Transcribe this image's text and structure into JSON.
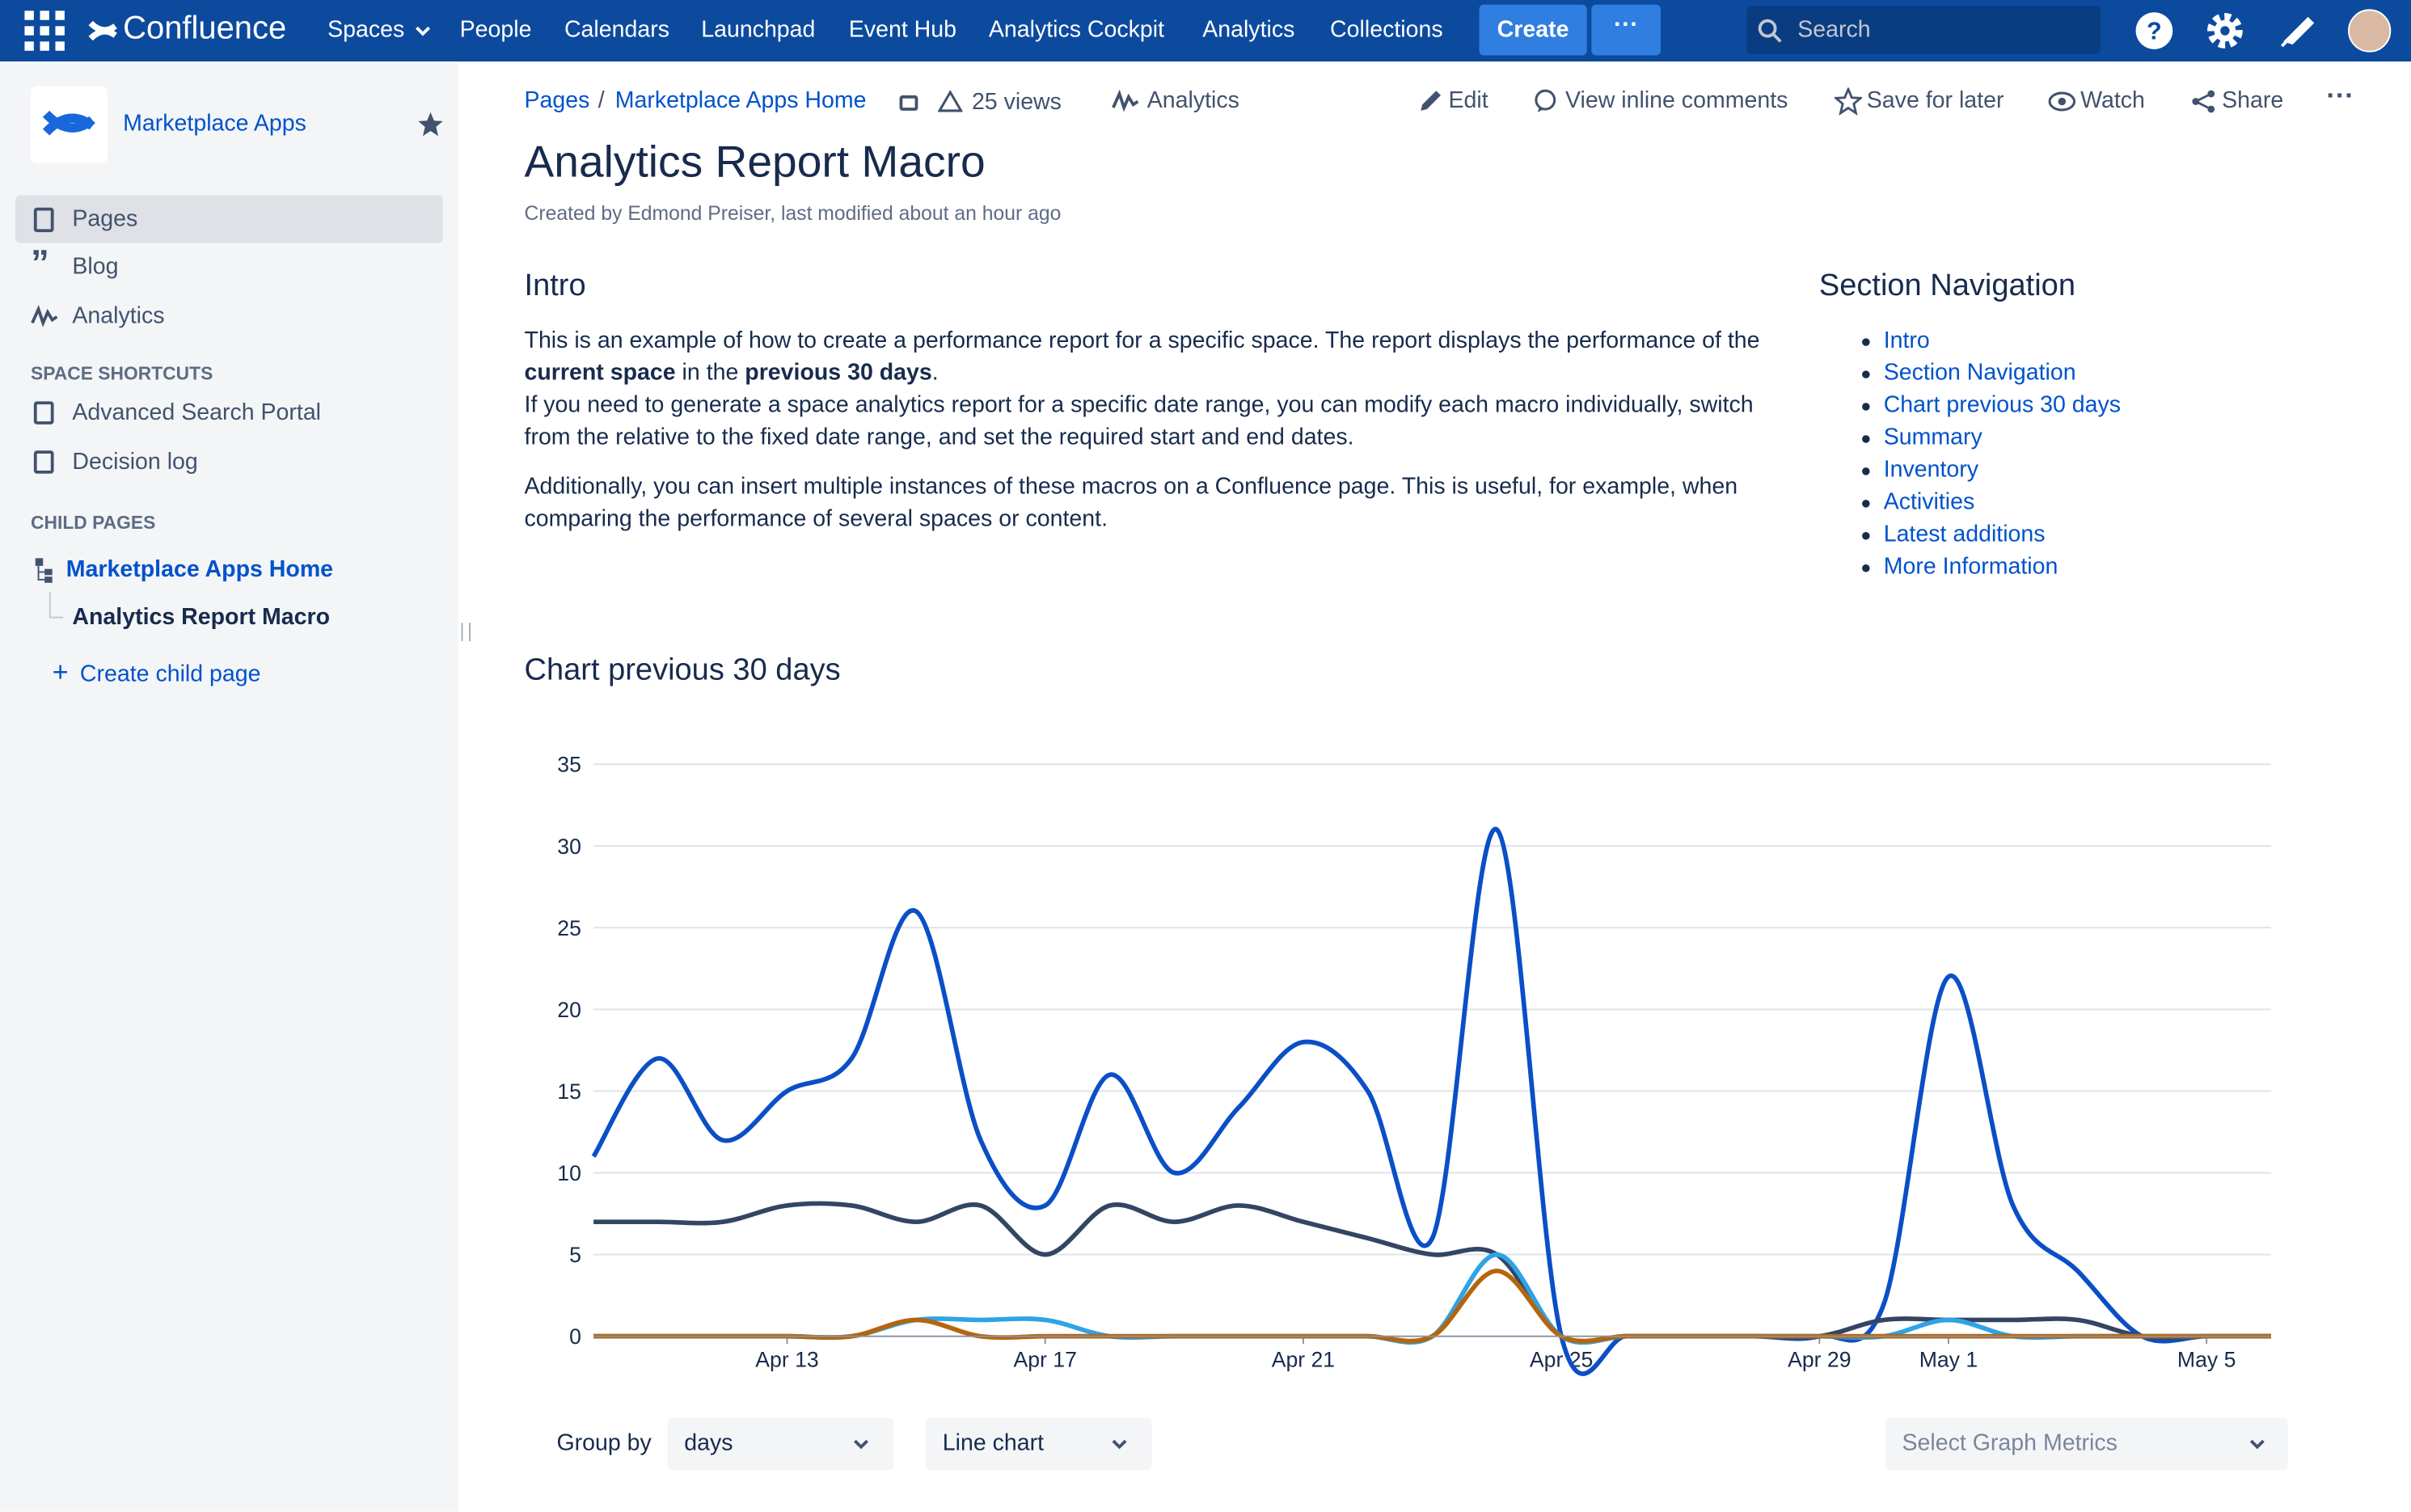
{
  "nav": {
    "product": "Confluence",
    "items": [
      "Spaces",
      "People",
      "Calendars",
      "Launchpad",
      "Event Hub",
      "Analytics Cockpit",
      "Analytics",
      "Collections"
    ],
    "create": "Create",
    "search": "Search"
  },
  "sidebar": {
    "space": "Marketplace Apps",
    "items": [
      "Pages",
      "Blog",
      "Analytics"
    ],
    "shortcuts_heading": "SPACE SHORTCUTS",
    "shortcuts": [
      "Advanced Search Portal",
      "Decision log"
    ],
    "child_heading": "CHILD PAGES",
    "children": [
      "Marketplace Apps Home",
      "Analytics Report Macro"
    ],
    "create_child": "Create child page"
  },
  "page": {
    "breadcrumbs": [
      "Pages",
      "Marketplace Apps Home"
    ],
    "views": "25 views",
    "analytics": "Analytics",
    "actions": [
      "Edit",
      "View inline comments",
      "Save for later",
      "Watch",
      "Share"
    ],
    "title": "Analytics Report Macro",
    "byline": "Created by Edmond Preiser, last modified about an hour ago",
    "intro_heading": "Intro",
    "intro_p1": [
      "This is an example of how to create a performance report for a specific space. The report displays the performance of the ",
      "current space",
      " in the ",
      "previous 30 days",
      "."
    ],
    "intro_p1b": "If you need to generate a space analytics report for a specific date range, you can modify each macro individually, switch from the relative to the fixed date range, and set the required start and end dates.",
    "intro_p2": "Additionally, you can insert multiple instances of these macros on a Confluence page. This is useful, for example, when comparing the performance of several spaces or content.",
    "section_nav_heading": "Section Navigation",
    "section_nav": [
      "Intro",
      "Section Navigation",
      "Chart previous 30 days",
      "Summary",
      "Inventory",
      "Activities",
      "Latest additions",
      "More Information"
    ],
    "chart_heading": "Chart previous 30 days",
    "controls": {
      "group_by_label": "Group by",
      "group_by": "days",
      "chart_type": "Line chart",
      "metrics": "Select Graph Metrics"
    }
  },
  "chart_data": {
    "type": "line",
    "x": [
      "Apr 10",
      "Apr 11",
      "Apr 12",
      "Apr 13",
      "Apr 14",
      "Apr 15",
      "Apr 16",
      "Apr 17",
      "Apr 18",
      "Apr 19",
      "Apr 20",
      "Apr 21",
      "Apr 22",
      "Apr 23",
      "Apr 24",
      "Apr 25",
      "Apr 26",
      "Apr 27",
      "Apr 28",
      "Apr 29",
      "Apr 30",
      "May 1",
      "May 2",
      "May 3",
      "May 4",
      "May 5",
      "May 6"
    ],
    "xlim": [
      "Apr 10",
      "May 6"
    ],
    "xticks": [
      "Apr 13",
      "Apr 17",
      "Apr 21",
      "Apr 25",
      "Apr 29",
      "May 1",
      "May 5"
    ],
    "ylim": [
      0,
      35
    ],
    "yticks": [
      0,
      5,
      10,
      15,
      20,
      25,
      30,
      35
    ],
    "grid": true,
    "series": [
      {
        "color": "#0b4fc7",
        "values": [
          11,
          17,
          12,
          15,
          17,
          26,
          12,
          8,
          16,
          10,
          14,
          18,
          15,
          6,
          31,
          0,
          0,
          0,
          0,
          0,
          2,
          22,
          8,
          4,
          0,
          0,
          0
        ]
      },
      {
        "color": "#344563",
        "values": [
          7,
          7,
          7,
          8,
          8,
          7,
          8,
          5,
          8,
          7,
          8,
          7,
          6,
          5,
          5,
          0,
          0,
          0,
          0,
          0,
          1,
          1,
          1,
          1,
          0,
          0,
          0
        ]
      },
      {
        "color": "#2ea3e6",
        "values": [
          0,
          0,
          0,
          0,
          0,
          1,
          1,
          1,
          0,
          0,
          0,
          0,
          0,
          0,
          5,
          0,
          0,
          0,
          0,
          0,
          0,
          1,
          0,
          0,
          0,
          0,
          0
        ]
      },
      {
        "color": "#b5650d",
        "values": [
          0,
          0,
          0,
          0,
          0,
          1,
          0,
          0,
          0,
          0,
          0,
          0,
          0,
          0,
          4,
          0,
          0,
          0,
          0,
          0,
          0,
          0,
          0,
          0,
          0,
          0,
          0
        ]
      }
    ]
  }
}
